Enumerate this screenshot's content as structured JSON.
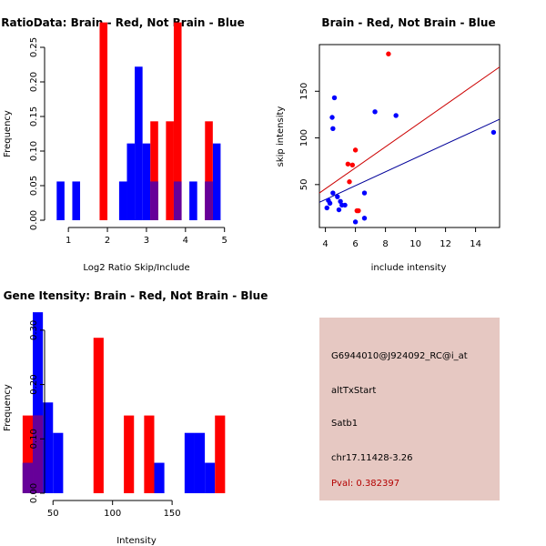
{
  "panels": {
    "ratio": {
      "title": "RatioData: Brain - Red, Not Brain - Blue",
      "xlabel": "Log2 Ratio Skip/Include",
      "ylabel": "Frequency"
    },
    "scatter": {
      "title": "Brain - Red, Not Brain - Blue",
      "xlabel": "include intensity",
      "ylabel": "skip intensity"
    },
    "gene": {
      "title": "Gene Itensity: Brain - Red, Not Brain - Blue",
      "xlabel": "Intensity",
      "ylabel": "Frequency"
    }
  },
  "colors": {
    "red": "#ff0000",
    "blue": "#0000ff",
    "purple": "#660099",
    "darkred": "#cc0000",
    "navy": "#000099"
  },
  "info": {
    "probe": "G6944010@J924092_RC@i_at",
    "event": "altTxStart",
    "gene": "Satb1",
    "location": "chr17.11428-3.26",
    "pval": "Pval: 0.382397"
  },
  "chart_data": [
    {
      "type": "bar",
      "name": "ratio-histogram",
      "title": "RatioData: Brain - Red, Not Brain - Blue",
      "xlabel": "Log2 Ratio Skip/Include",
      "ylabel": "Frequency",
      "xlim": [
        0.6,
        5.1
      ],
      "ylim": [
        0,
        0.3
      ],
      "xticks": [
        1,
        2,
        3,
        4,
        5
      ],
      "yticks": [
        0.0,
        0.05,
        0.1,
        0.15,
        0.2,
        0.25
      ],
      "ytick_labels": [
        "0.00",
        "0.05",
        "0.10",
        "0.15",
        "0.20",
        "0.25"
      ],
      "bin_width": 0.2,
      "series": [
        {
          "name": "Not Brain",
          "color": "blue",
          "bins": [
            [
              0.7,
              0.9,
              0.056
            ],
            [
              1.1,
              1.3,
              0.056
            ],
            [
              2.3,
              2.5,
              0.056
            ],
            [
              2.5,
              2.7,
              0.111
            ],
            [
              2.7,
              2.9,
              0.222
            ],
            [
              2.9,
              3.1,
              0.111
            ],
            [
              3.1,
              3.3,
              0.056
            ],
            [
              3.7,
              3.9,
              0.056
            ],
            [
              4.1,
              4.3,
              0.056
            ],
            [
              4.5,
              4.7,
              0.056
            ],
            [
              4.7,
              4.9,
              0.111
            ]
          ]
        },
        {
          "name": "Brain",
          "color": "red",
          "bins": [
            [
              1.8,
              2.0,
              0.286
            ],
            [
              3.1,
              3.3,
              0.143
            ],
            [
              3.5,
              3.7,
              0.143
            ],
            [
              3.7,
              3.9,
              0.286
            ],
            [
              4.5,
              4.7,
              0.143
            ]
          ]
        }
      ]
    },
    {
      "type": "scatter",
      "name": "intensity-scatter",
      "title": "Brain - Red, Not Brain - Blue",
      "xlabel": "include intensity",
      "ylabel": "skip intensity",
      "xlim": [
        3.6,
        15.6
      ],
      "ylim": [
        4,
        200
      ],
      "xticks": [
        4,
        6,
        8,
        10,
        12,
        14
      ],
      "yticks": [
        50,
        100,
        150
      ],
      "series": [
        {
          "name": "Brain",
          "color": "red",
          "points": [
            [
              8.2,
              190
            ],
            [
              5.5,
              72
            ],
            [
              5.8,
              71
            ],
            [
              6.0,
              87
            ],
            [
              5.6,
              53
            ],
            [
              6.1,
              22
            ],
            [
              6.2,
              22
            ]
          ]
        },
        {
          "name": "Not Brain",
          "color": "blue",
          "points": [
            [
              4.1,
              25
            ],
            [
              4.2,
              33
            ],
            [
              4.3,
              30
            ],
            [
              4.5,
              41
            ],
            [
              4.6,
              143
            ],
            [
              4.45,
              122
            ],
            [
              4.5,
              110
            ],
            [
              4.8,
              37
            ],
            [
              5.0,
              32
            ],
            [
              5.1,
              28
            ],
            [
              4.9,
              23
            ],
            [
              5.3,
              28
            ],
            [
              6.0,
              10
            ],
            [
              6.6,
              14
            ],
            [
              6.6,
              41
            ],
            [
              7.3,
              128
            ],
            [
              8.7,
              124
            ],
            [
              15.2,
              106
            ]
          ]
        }
      ],
      "fit_lines": [
        {
          "name": "Brain fit",
          "color": "darkred",
          "from": [
            3.6,
            41
          ],
          "to": [
            15.6,
            176
          ]
        },
        {
          "name": "Not Brain fit",
          "color": "navy",
          "from": [
            3.6,
            31
          ],
          "to": [
            15.6,
            120
          ]
        }
      ]
    },
    {
      "type": "bar",
      "name": "gene-intensity-histogram",
      "title": "Gene Itensity: Brain - Red, Not Brain - Blue",
      "xlabel": "Intensity",
      "ylabel": "Frequency",
      "xlim": [
        20,
        195
      ],
      "ylim": [
        0,
        0.36
      ],
      "xticks": [
        50,
        100,
        150
      ],
      "yticks": [
        0.0,
        0.1,
        0.2,
        0.3
      ],
      "ytick_labels": [
        "0.00",
        "0.10",
        "0.20",
        "0.30"
      ],
      "bin_width": 8.5,
      "series": [
        {
          "name": "Not Brain",
          "color": "blue",
          "bins": [
            [
              24.5,
              33,
              0.056
            ],
            [
              33,
              41.5,
              0.333
            ],
            [
              41.5,
              50,
              0.167
            ],
            [
              50,
              58.5,
              0.111
            ],
            [
              135,
              143.5,
              0.056
            ],
            [
              160.5,
              169,
              0.111
            ],
            [
              169,
              177.5,
              0.111
            ],
            [
              177.5,
              186,
              0.056
            ]
          ]
        },
        {
          "name": "Brain",
          "color": "red",
          "bins": [
            [
              24.5,
              33,
              0.143
            ],
            [
              33,
              41.5,
              0.143
            ],
            [
              84,
              92.5,
              0.286
            ],
            [
              109.5,
              118,
              0.143
            ],
            [
              126.5,
              135,
              0.143
            ],
            [
              186,
              194.5,
              0.143
            ]
          ]
        }
      ]
    }
  ]
}
